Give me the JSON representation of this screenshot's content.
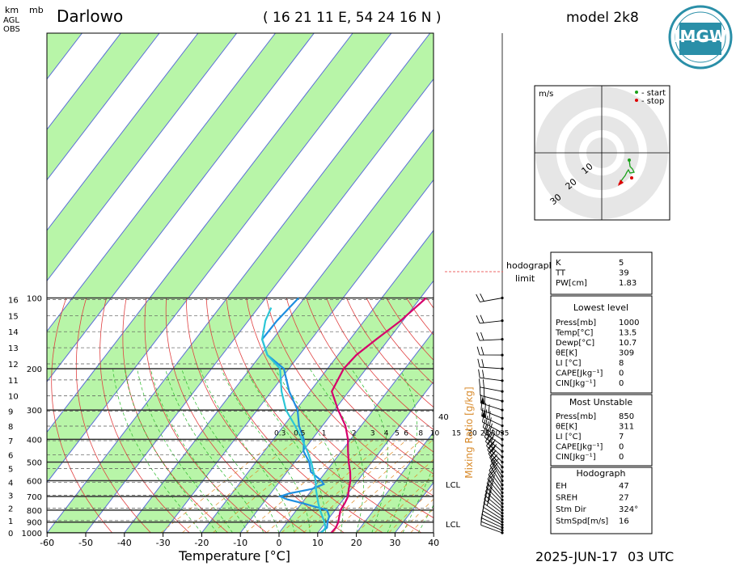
{
  "header": {
    "station": "Darlowo",
    "coords": "( 16 21 11 E, 54 24 16 N )",
    "model": "model 2k8",
    "logo_text": "IMGW",
    "date": "2025-JUN-17",
    "time": "03 UTC"
  },
  "axes": {
    "left_unit_1": "km",
    "left_unit_2": "mb",
    "left_unit_3": "AGL",
    "left_unit_4": "OBS",
    "xlabel": "Temperature [°C]",
    "mixing_label": "Mixing Ratio [g/kg]",
    "lcl_label": "LCL",
    "lcl_label_2": "LCL",
    "label_40": "40"
  },
  "hodograph": {
    "unit": "m/s",
    "start_label": "- start",
    "stop_label": "- stop",
    "ring_labels": [
      "10",
      "20",
      "30"
    ],
    "link_label_1": "hodograph",
    "link_label_2": "limit"
  },
  "indices": {
    "top": [
      {
        "label": "K",
        "value": "5"
      },
      {
        "label": "TT",
        "value": "39"
      },
      {
        "label": "PW[cm]",
        "value": "1.83"
      }
    ],
    "lowest_title": "Lowest level",
    "lowest": [
      {
        "label": "Press[mb]",
        "value": "1000"
      },
      {
        "label": "Temp[°C]",
        "value": "13.5"
      },
      {
        "label": "Dewp[°C]",
        "value": "10.7"
      },
      {
        "label": "θE[K]",
        "value": "309"
      },
      {
        "label": "LI [°C]",
        "value": "8"
      },
      {
        "label": "CAPE[Jkg⁻¹]",
        "value": "0"
      },
      {
        "label": "CIN[Jkg⁻¹]",
        "value": "0"
      }
    ],
    "unstable_title": "Most Unstable",
    "unstable": [
      {
        "label": "Press[mb]",
        "value": "850"
      },
      {
        "label": "θE[K]",
        "value": "311"
      },
      {
        "label": "LI [°C]",
        "value": "7"
      },
      {
        "label": "CAPE[Jkg⁻¹]",
        "value": "0"
      },
      {
        "label": "CIN[Jkg⁻¹]",
        "value": "0"
      }
    ],
    "hodo_title": "Hodograph",
    "hodo": [
      {
        "label": "EH",
        "value": "47"
      },
      {
        "label": "SREH",
        "value": "27"
      },
      {
        "label": "Stm Dir",
        "value": "324°"
      },
      {
        "label": "StmSpd[m/s]",
        "value": "16"
      }
    ]
  },
  "chart_data": {
    "type": "line",
    "temperature_ticks": [
      "-60",
      "-50",
      "-40",
      "-30",
      "-20",
      "-10",
      "0",
      "10",
      "20",
      "30",
      "40"
    ],
    "pressure_ticks": [
      "100",
      "200",
      "300",
      "400",
      "500",
      "600",
      "700",
      "800",
      "900",
      "1000"
    ],
    "height_ticks_km": [
      "0",
      "1",
      "2",
      "3",
      "4",
      "5",
      "6",
      "7",
      "8",
      "9",
      "10",
      "11",
      "12",
      "13",
      "14",
      "15",
      "16"
    ],
    "mixing_ratio_labels": [
      "0.3",
      "0.5",
      "1",
      "2",
      "3",
      "4",
      "5",
      "6",
      "8",
      "10",
      "15",
      "20",
      "25",
      "30",
      "35"
    ],
    "series": [
      {
        "color": "#d6006b",
        "points": [
          [
            1000,
            13.5
          ],
          [
            950,
            12.5
          ],
          [
            900,
            10.8
          ],
          [
            850,
            8.6
          ],
          [
            800,
            6.3
          ],
          [
            750,
            4.6
          ],
          [
            700,
            2.5
          ],
          [
            650,
            -0.5
          ],
          [
            600,
            -3.5
          ],
          [
            550,
            -7.3
          ],
          [
            500,
            -11.8
          ],
          [
            450,
            -16.5
          ],
          [
            400,
            -21.6
          ],
          [
            350,
            -28.0
          ],
          [
            300,
            -36.5
          ],
          [
            250,
            -46.0
          ],
          [
            200,
            -52.5
          ],
          [
            175,
            -55.0
          ],
          [
            150,
            -56.5
          ],
          [
            125,
            -58.0
          ],
          [
            100,
            -61.0
          ]
        ]
      },
      {
        "color": "#1f8fe0",
        "points": [
          [
            1000,
            10.7
          ],
          [
            950,
            10.2
          ],
          [
            900,
            8.0
          ],
          [
            850,
            6.0
          ],
          [
            800,
            2.8
          ],
          [
            750,
            -6.0
          ],
          [
            720,
            -12.0
          ],
          [
            700,
            -15.0
          ],
          [
            680,
            -14.0
          ],
          [
            650,
            -10.0
          ],
          [
            620,
            -9.0
          ],
          [
            600,
            -11.0
          ],
          [
            550,
            -17.5
          ],
          [
            500,
            -22.0
          ],
          [
            450,
            -28.0
          ],
          [
            400,
            -33.0
          ],
          [
            350,
            -40.0
          ],
          [
            300,
            -47.0
          ],
          [
            250,
            -57.0
          ],
          [
            200,
            -68.0
          ],
          [
            175,
            -78.0
          ],
          [
            150,
            -86.0
          ],
          [
            125,
            -90.0
          ],
          [
            100,
            -94.0
          ]
        ]
      },
      {
        "color": "#2cc6d6",
        "points": [
          [
            1000,
            11.0
          ],
          [
            950,
            9.8
          ],
          [
            900,
            7.2
          ],
          [
            850,
            4.2
          ],
          [
            800,
            1.0
          ],
          [
            750,
            -2.2
          ],
          [
            700,
            -5.5
          ],
          [
            650,
            -9.0
          ],
          [
            600,
            -12.5
          ],
          [
            550,
            -16.8
          ],
          [
            500,
            -21.5
          ],
          [
            450,
            -27.0
          ],
          [
            400,
            -33.5
          ],
          [
            350,
            -41.0
          ],
          [
            300,
            -50.0
          ],
          [
            250,
            -59.0
          ],
          [
            200,
            -69.0
          ],
          [
            175,
            -78.0
          ],
          [
            150,
            -86.0
          ],
          [
            125,
            -93.0
          ],
          [
            110,
            -97.0
          ]
        ]
      }
    ],
    "wind_barbs_from_deg": "NW to NE, increasing with height"
  }
}
